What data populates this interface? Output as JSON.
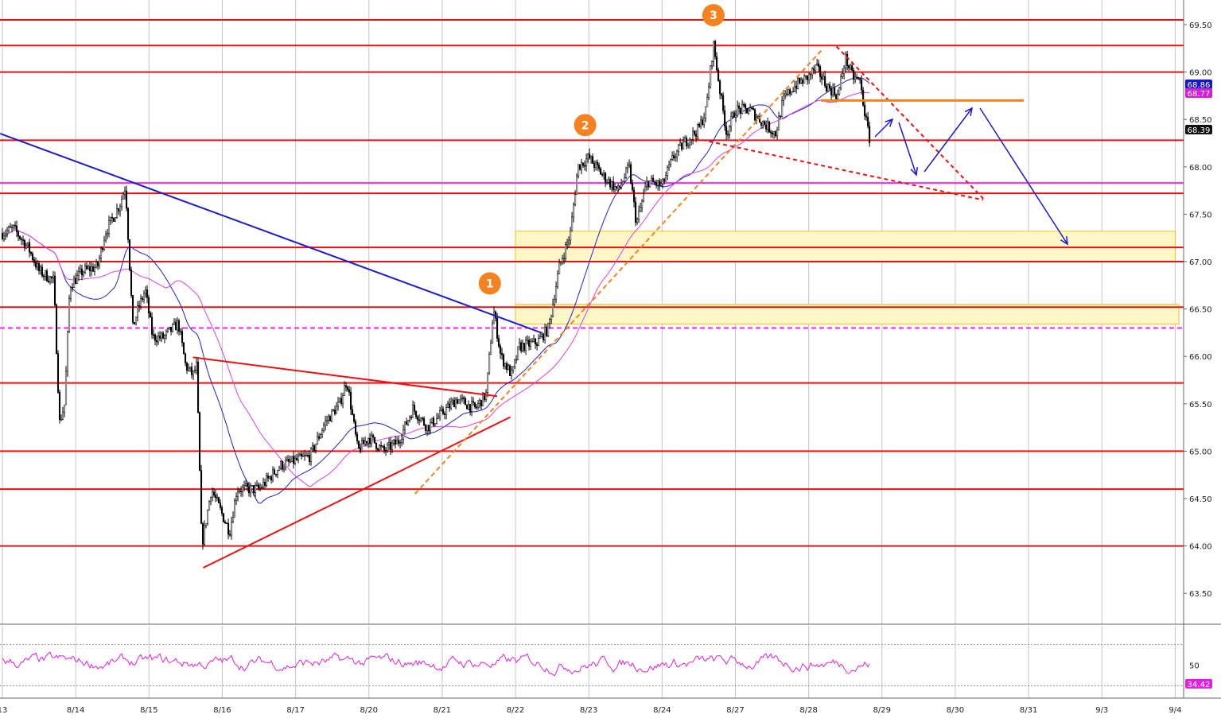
{
  "chart_data": {
    "type": "candlestick",
    "price_axis": {
      "range": [
        63.1,
        69.65
      ],
      "ticks": [
        "69.50",
        "69.00",
        "68.50",
        "68.00",
        "67.50",
        "67.00",
        "66.50",
        "66.00",
        "65.50",
        "65.00",
        "64.50",
        "64.00",
        "63.50"
      ]
    },
    "time_axis": {
      "range": [
        0,
        16.15
      ],
      "ticks": [
        {
          "label": "13",
          "t": 0
        },
        {
          "label": "8/14",
          "t": 1
        },
        {
          "label": "8/15",
          "t": 2
        },
        {
          "label": "8/16",
          "t": 3
        },
        {
          "label": "8/17",
          "t": 4
        },
        {
          "label": "8/20",
          "t": 5
        },
        {
          "label": "8/21",
          "t": 6
        },
        {
          "label": "8/22",
          "t": 7
        },
        {
          "label": "8/23",
          "t": 8
        },
        {
          "label": "8/24",
          "t": 9
        },
        {
          "label": "8/27",
          "t": 10
        },
        {
          "label": "8/28",
          "t": 11
        },
        {
          "label": "8/29",
          "t": 12
        },
        {
          "label": "8/30",
          "t": 13
        },
        {
          "label": "8/31",
          "t": 14
        },
        {
          "label": "9/3",
          "t": 15
        },
        {
          "label": "9/4",
          "t": 16
        }
      ]
    },
    "price_path": [
      [
        0,
        67.3
      ],
      [
        0.15,
        67.35
      ],
      [
        0.35,
        67.15
      ],
      [
        0.5,
        66.9
      ],
      [
        0.7,
        66.8
      ],
      [
        0.78,
        65.3
      ],
      [
        0.85,
        65.5
      ],
      [
        0.92,
        66.75
      ],
      [
        1.1,
        66.9
      ],
      [
        1.3,
        66.95
      ],
      [
        1.4,
        67.3
      ],
      [
        1.6,
        67.6
      ],
      [
        1.68,
        67.8
      ],
      [
        1.78,
        66.3
      ],
      [
        1.85,
        66.5
      ],
      [
        1.95,
        66.7
      ],
      [
        2.05,
        66.2
      ],
      [
        2.2,
        66.2
      ],
      [
        2.4,
        66.35
      ],
      [
        2.5,
        65.9
      ],
      [
        2.6,
        65.8
      ],
      [
        2.65,
        65.9
      ],
      [
        2.72,
        64.0
      ],
      [
        2.85,
        64.6
      ],
      [
        3.1,
        64.15
      ],
      [
        3.2,
        64.6
      ],
      [
        3.5,
        64.6
      ],
      [
        3.8,
        64.85
      ],
      [
        4.0,
        64.9
      ],
      [
        4.2,
        64.95
      ],
      [
        4.4,
        65.3
      ],
      [
        4.6,
        65.5
      ],
      [
        4.7,
        65.75
      ],
      [
        4.85,
        65.0
      ],
      [
        5.0,
        65.15
      ],
      [
        5.2,
        65.0
      ],
      [
        5.4,
        65.1
      ],
      [
        5.6,
        65.45
      ],
      [
        5.8,
        65.25
      ],
      [
        6.0,
        65.4
      ],
      [
        6.2,
        65.55
      ],
      [
        6.45,
        65.45
      ],
      [
        6.6,
        65.6
      ],
      [
        6.7,
        66.5
      ],
      [
        6.8,
        66.0
      ],
      [
        6.95,
        65.8
      ],
      [
        7.05,
        66.1
      ],
      [
        7.3,
        66.15
      ],
      [
        7.45,
        66.3
      ],
      [
        7.6,
        66.95
      ],
      [
        7.75,
        67.3
      ],
      [
        7.85,
        68.0
      ],
      [
        8.0,
        68.1
      ],
      [
        8.2,
        67.9
      ],
      [
        8.4,
        67.75
      ],
      [
        8.55,
        68.0
      ],
      [
        8.65,
        67.4
      ],
      [
        8.8,
        67.85
      ],
      [
        9.0,
        67.8
      ],
      [
        9.15,
        68.1
      ],
      [
        9.3,
        68.25
      ],
      [
        9.5,
        68.4
      ],
      [
        9.6,
        68.6
      ],
      [
        9.7,
        69.3
      ],
      [
        9.8,
        68.75
      ],
      [
        9.88,
        68.35
      ],
      [
        10.0,
        68.6
      ],
      [
        10.2,
        68.6
      ],
      [
        10.4,
        68.45
      ],
      [
        10.55,
        68.35
      ],
      [
        10.65,
        68.7
      ],
      [
        10.8,
        68.85
      ],
      [
        11.0,
        68.95
      ],
      [
        11.1,
        69.05
      ],
      [
        11.25,
        68.85
      ],
      [
        11.4,
        68.75
      ],
      [
        11.5,
        69.15
      ],
      [
        11.6,
        68.95
      ],
      [
        11.7,
        68.9
      ],
      [
        11.78,
        68.5
      ],
      [
        11.83,
        68.3
      ]
    ],
    "rsi": {
      "current": "34.42",
      "tick": "50",
      "range": [
        18,
        82
      ],
      "upper": 70,
      "lower": 30
    },
    "horizontal_levels_red": [
      69.55,
      69.28,
      69.0,
      68.28,
      67.72,
      67.15,
      67.0,
      66.52,
      65.72,
      65.0,
      64.6,
      64.0
    ],
    "level_magenta": 67.83,
    "level_magenta_dashed": 66.3,
    "zones": [
      {
        "t0": 7.0,
        "t1": 16.0,
        "p0": 67.0,
        "p1": 67.32
      },
      {
        "t0": 7.0,
        "t1": 16.05,
        "p0": 66.34,
        "p1": 66.55
      }
    ],
    "annotations": [
      {
        "label": "1",
        "t": 6.65,
        "p": 66.77
      },
      {
        "label": "2",
        "t": 7.95,
        "p": 68.44
      },
      {
        "label": "3",
        "t": 9.7,
        "p": 69.6
      }
    ],
    "price_tags": [
      {
        "value": "68.86",
        "color": "#1818c8"
      },
      {
        "value": "68.77",
        "color": "#d81cd8"
      },
      {
        "value": "68.39",
        "color": "#111111"
      }
    ]
  },
  "colors": {
    "level": "#ee1111",
    "magenta": "#ff22ff",
    "trend_blue": "#1a1ad0",
    "orange": "#f58220",
    "zone_fill": "#fdf6c6",
    "zone_stroke": "#f2c21a",
    "grid": "#c6c6c6"
  }
}
